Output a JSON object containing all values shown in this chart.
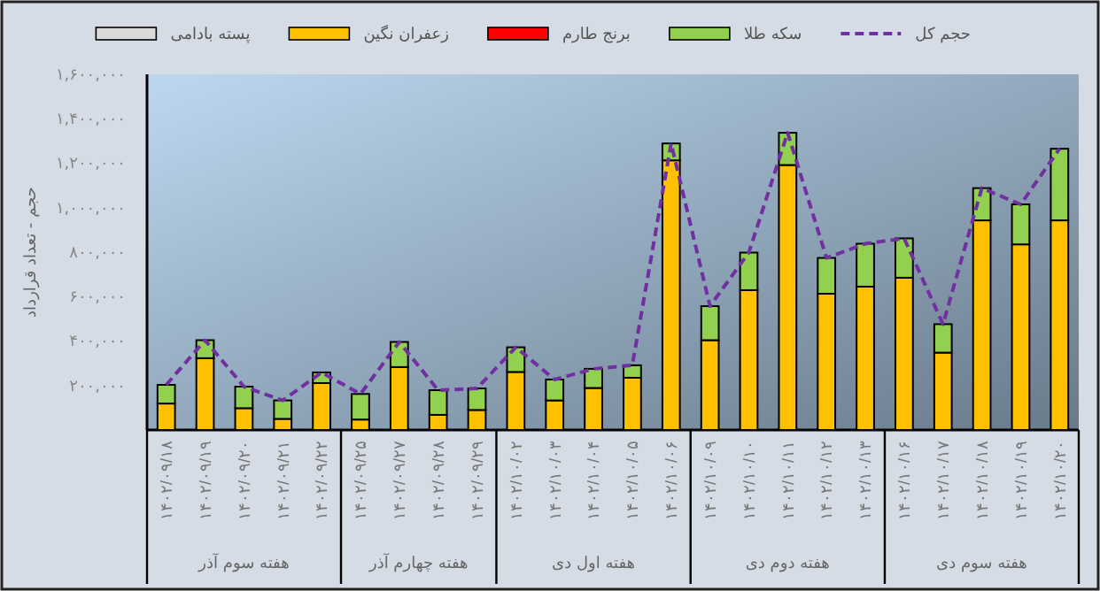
{
  "chart_data": {
    "type": "bar",
    "stacked": true,
    "ylabel": "حجم - تعداد قرارداد",
    "legend": "top",
    "line_style": "dashed",
    "categories": [
      "۱۴۰۲/۰۹/۱۸",
      "۱۴۰۲/۰۹/۱۹",
      "۱۴۰۲/۰۹/۲۰",
      "۱۴۰۲/۰۹/۲۱",
      "۱۴۰۲/۰۹/۲۲",
      "۱۴۰۲/۰۹/۲۵",
      "۱۴۰۲/۰۹/۲۷",
      "۱۴۰۲/۰۹/۲۸",
      "۱۴۰۲/۰۹/۲۹",
      "۱۴۰۲/۱۰/۰۲",
      "۱۴۰۲/۱۰/۰۳",
      "۱۴۰۲/۱۰/۰۴",
      "۱۴۰۲/۱۰/۰۵",
      "۱۴۰۲/۱۰/۰۶",
      "۱۴۰۲/۱۰/۰۹",
      "۱۴۰۲/۱۰/۱۰",
      "۱۴۰۲/۱۰/۱۱",
      "۱۴۰۲/۱۰/۱۲",
      "۱۴۰۲/۱۰/۱۳",
      "۱۴۰۲/۱۰/۱۶",
      "۱۴۰۲/۱۰/۱۷",
      "۱۴۰۲/۱۰/۱۸",
      "۱۴۰۲/۱۰/۱۹",
      "۱۴۰۲/۱۰/۲۰"
    ],
    "series": [
      {
        "name": "پسته بادامی",
        "color": "#d9d9d9",
        "values": [
          0,
          0,
          0,
          0,
          0,
          0,
          0,
          0,
          0,
          0,
          0,
          0,
          0,
          0,
          0,
          0,
          0,
          0,
          0,
          0,
          0,
          0,
          0,
          0
        ]
      },
      {
        "name": "زعفران نگین",
        "color": "#ffc000",
        "values": [
          119000,
          323000,
          98000,
          50000,
          211000,
          47000,
          283000,
          68000,
          90000,
          261000,
          133000,
          189000,
          235000,
          1213000,
          404000,
          629000,
          1192000,
          613000,
          645000,
          685000,
          348000,
          943000,
          835000,
          943000
        ]
      },
      {
        "name": "برنج طارم",
        "color": "#ff0000",
        "values": [
          0,
          0,
          0,
          0,
          0,
          0,
          0,
          0,
          0,
          0,
          0,
          0,
          0,
          0,
          0,
          0,
          0,
          0,
          0,
          0,
          0,
          0,
          0,
          0
        ]
      },
      {
        "name": "سکه طلا",
        "color": "#92d050",
        "values": [
          84000,
          81000,
          97000,
          83000,
          48000,
          115000,
          113000,
          111000,
          97000,
          111000,
          94000,
          86000,
          56000,
          76000,
          153000,
          169000,
          145000,
          161000,
          193000,
          177000,
          128000,
          145000,
          180000,
          322000
        ]
      },
      {
        "name": "حجم کل",
        "type": "line",
        "color": "#7030a0",
        "values": [
          203000,
          404000,
          195000,
          133000,
          259000,
          162000,
          396000,
          179000,
          187000,
          372000,
          227000,
          275000,
          291000,
          1289000,
          557000,
          798000,
          1337000,
          774000,
          838000,
          862000,
          476000,
          1088000,
          1015000,
          1265000
        ]
      }
    ],
    "ylim": [
      0,
      1600000
    ],
    "yticks": [
      {
        "value": 200000,
        "label": "۲۰۰,۰۰۰"
      },
      {
        "value": 400000,
        "label": "۴۰۰,۰۰۰"
      },
      {
        "value": 600000,
        "label": "۶۰۰,۰۰۰"
      },
      {
        "value": 800000,
        "label": "۸۰۰,۰۰۰"
      },
      {
        "value": 1000000,
        "label": "۱,۰۰۰,۰۰۰"
      },
      {
        "value": 1200000,
        "label": "۱,۲۰۰,۰۰۰"
      },
      {
        "value": 1400000,
        "label": "۱,۴۰۰,۰۰۰"
      },
      {
        "value": 1600000,
        "label": "۱,۶۰۰,۰۰۰"
      }
    ],
    "annotations": [
      "هفته سوم آذر",
      "هفته چهارم آذر",
      "هفته اول دی",
      "هفته دوم دی",
      "هفته سوم دی"
    ]
  }
}
